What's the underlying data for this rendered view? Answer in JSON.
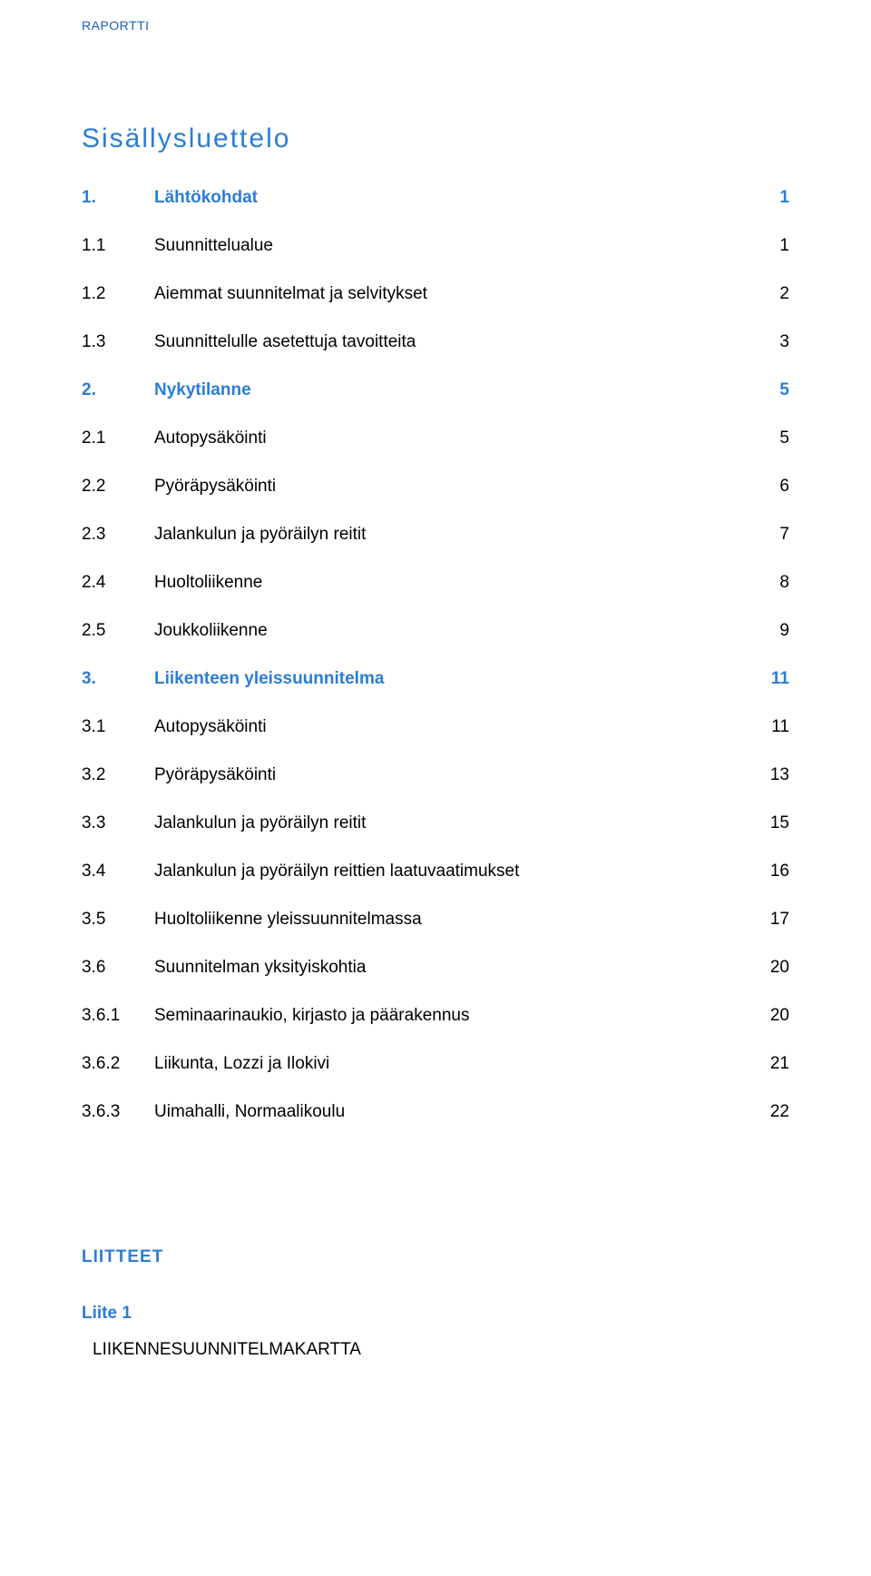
{
  "header": {
    "label": "RAPORTTI"
  },
  "title": "Sisällysluettelo",
  "toc": [
    {
      "level": 1,
      "num": "1.",
      "label": "Lähtökohdat",
      "page": "1"
    },
    {
      "level": 2,
      "num": "1.1",
      "label": "Suunnittelualue",
      "page": "1"
    },
    {
      "level": 2,
      "num": "1.2",
      "label": "Aiemmat suunnitelmat ja selvitykset",
      "page": "2"
    },
    {
      "level": 2,
      "num": "1.3",
      "label": "Suunnittelulle asetettuja tavoitteita",
      "page": "3"
    },
    {
      "level": 1,
      "num": "2.",
      "label": "Nykytilanne",
      "page": "5"
    },
    {
      "level": 2,
      "num": "2.1",
      "label": "Autopysäköinti",
      "page": "5"
    },
    {
      "level": 2,
      "num": "2.2",
      "label": "Pyöräpysäköinti",
      "page": "6"
    },
    {
      "level": 2,
      "num": "2.3",
      "label": "Jalankulun ja pyöräilyn reitit",
      "page": "7"
    },
    {
      "level": 2,
      "num": "2.4",
      "label": "Huoltoliikenne",
      "page": "8"
    },
    {
      "level": 2,
      "num": "2.5",
      "label": "Joukkoliikenne",
      "page": "9"
    },
    {
      "level": 1,
      "num": "3.",
      "label": "Liikenteen yleissuunnitelma",
      "page": "11"
    },
    {
      "level": 2,
      "num": "3.1",
      "label": "Autopysäköinti",
      "page": "11"
    },
    {
      "level": 2,
      "num": "3.2",
      "label": "Pyöräpysäköinti",
      "page": "13"
    },
    {
      "level": 2,
      "num": "3.3",
      "label": "Jalankulun ja pyöräilyn reitit",
      "page": "15"
    },
    {
      "level": 2,
      "num": "3.4",
      "label": "Jalankulun ja pyöräilyn reittien laatuvaatimukset",
      "page": "16"
    },
    {
      "level": 2,
      "num": "3.5",
      "label": "Huoltoliikenne yleissuunnitelmassa",
      "page": "17"
    },
    {
      "level": 2,
      "num": "3.6",
      "label": "Suunnitelman yksityiskohtia",
      "page": "20"
    },
    {
      "level": 3,
      "num": "3.6.1",
      "label": "Seminaarinaukio, kirjasto ja päärakennus",
      "page": "20"
    },
    {
      "level": 3,
      "num": "3.6.2",
      "label": "Liikunta, Lozzi ja Ilokivi",
      "page": "21"
    },
    {
      "level": 3,
      "num": "3.6.3",
      "label": "Uimahalli, Normaalikoulu",
      "page": "22"
    }
  ],
  "appendix": {
    "title": "LIITTEET",
    "sections": [
      {
        "sub": "Liite 1",
        "item": "LIIKENNESUUNNITELMAKARTTA"
      }
    ]
  },
  "style": {
    "page_bg": "#ffffff",
    "text_color": "#000000",
    "accent_color": "#2b7dd6",
    "header_color": "#1a5fbf",
    "font_family": "Verdana, Arial, sans-serif",
    "title_fontsize_pt": 22,
    "body_fontsize_pt": 14,
    "header_fontsize_pt": 10
  }
}
